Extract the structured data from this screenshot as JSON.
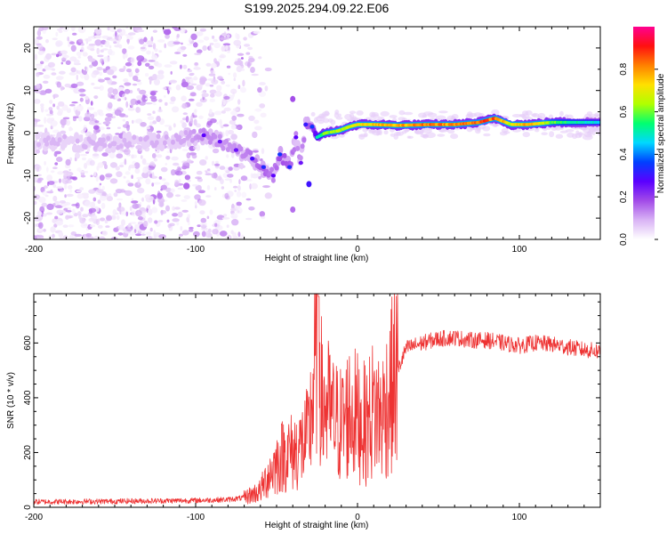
{
  "title": "S199.2025.294.09.22.E06",
  "chart_data": [
    {
      "type": "heatmap",
      "name": "spectrogram",
      "xlabel": "Height of straight line (km)",
      "ylabel": "Frequency (Hz)",
      "xlim": [
        -200,
        150
      ],
      "ylim": [
        -25,
        25
      ],
      "xticks": [
        -200,
        -100,
        0,
        100
      ],
      "yticks": [
        -20,
        -10,
        0,
        10,
        20
      ],
      "colorbar": {
        "label": "Normalized spectral amplitude",
        "range": [
          0.0,
          1.0
        ],
        "ticks": [
          "0.0",
          "0.2",
          "0.4",
          "0.6",
          "0.8"
        ],
        "colors": [
          "#ffffff",
          "#d9b3f5",
          "#a24be8",
          "#5a00ff",
          "#0040ff",
          "#00d8ff",
          "#00ff70",
          "#b0ff00",
          "#ffe000",
          "#ff8000",
          "#ff1010",
          "#ff0090"
        ]
      },
      "main_signal_track": [
        {
          "x": -200,
          "y": -2.0,
          "amp": 0.14
        },
        {
          "x": -180,
          "y": -2.0,
          "amp": 0.15
        },
        {
          "x": -160,
          "y": -2.5,
          "amp": 0.15
        },
        {
          "x": -140,
          "y": -2.0,
          "amp": 0.15
        },
        {
          "x": -120,
          "y": -2.0,
          "amp": 0.16
        },
        {
          "x": -105,
          "y": -1.0,
          "amp": 0.17
        },
        {
          "x": -95,
          "y": -0.5,
          "amp": 0.22
        },
        {
          "x": -85,
          "y": -2.0,
          "amp": 0.2
        },
        {
          "x": -75,
          "y": -4.0,
          "amp": 0.2
        },
        {
          "x": -65,
          "y": -6.0,
          "amp": 0.24
        },
        {
          "x": -58,
          "y": -8.0,
          "amp": 0.28
        },
        {
          "x": -52,
          "y": -10.0,
          "amp": 0.22
        },
        {
          "x": -48,
          "y": -5.0,
          "amp": 0.3
        },
        {
          "x": -42,
          "y": -8.0,
          "amp": 0.28
        },
        {
          "x": -38,
          "y": -1.0,
          "amp": 0.22
        },
        {
          "x": -35,
          "y": -7.0,
          "amp": 0.2
        },
        {
          "x": -32,
          "y": 2.0,
          "amp": 0.26
        },
        {
          "x": -28,
          "y": 1.5,
          "amp": 0.3
        },
        {
          "x": -25,
          "y": -1.0,
          "amp": 0.5
        },
        {
          "x": -20,
          "y": 0.0,
          "amp": 0.65
        },
        {
          "x": -12,
          "y": 0.5,
          "amp": 0.7
        },
        {
          "x": -5,
          "y": 1.5,
          "amp": 0.72
        },
        {
          "x": 0,
          "y": 2.0,
          "amp": 0.75
        },
        {
          "x": 10,
          "y": 2.0,
          "amp": 0.8
        },
        {
          "x": 25,
          "y": 1.8,
          "amp": 0.82
        },
        {
          "x": 45,
          "y": 2.0,
          "amp": 0.9
        },
        {
          "x": 60,
          "y": 2.0,
          "amp": 0.86
        },
        {
          "x": 75,
          "y": 2.5,
          "amp": 0.92
        },
        {
          "x": 85,
          "y": 3.5,
          "amp": 0.9
        },
        {
          "x": 95,
          "y": 2.0,
          "amp": 0.72
        },
        {
          "x": 105,
          "y": 2.0,
          "amp": 0.85
        },
        {
          "x": 120,
          "y": 2.5,
          "amp": 0.65
        },
        {
          "x": 135,
          "y": 2.5,
          "amp": 0.55
        },
        {
          "x": 150,
          "y": 2.5,
          "amp": 0.5
        }
      ],
      "noise_region_x": [
        -200,
        -70
      ],
      "secondary_features": [
        {
          "x": -40,
          "y": 8.0,
          "amp": 0.18
        },
        {
          "x": -30,
          "y": -12.0,
          "amp": 0.3
        },
        {
          "x": -40,
          "y": -18.0,
          "amp": 0.15
        }
      ]
    },
    {
      "type": "line",
      "name": "snr",
      "xlabel": "Height of straight line (km)",
      "ylabel": "SNR (10 * v/v)",
      "xlim": [
        -200,
        150
      ],
      "ylim": [
        0,
        780
      ],
      "xticks": [
        -200,
        -100,
        0,
        100
      ],
      "yticks": [
        0,
        200,
        400,
        600
      ],
      "line_color": "#ee3333",
      "series": [
        {
          "name": "SNR",
          "x": [
            -200,
            -150,
            -100,
            -80,
            -70,
            -60,
            -55,
            -50,
            -45,
            -40,
            -35,
            -30,
            -26,
            -24,
            -22,
            -20,
            -15,
            -10,
            -5,
            0,
            5,
            10,
            15,
            20,
            25,
            30,
            40,
            50,
            60,
            70,
            80,
            90,
            100,
            110,
            120,
            130,
            140,
            150
          ],
          "y": [
            20,
            22,
            25,
            28,
            35,
            60,
            120,
            160,
            200,
            200,
            220,
            260,
            520,
            770,
            350,
            380,
            320,
            300,
            350,
            330,
            300,
            360,
            330,
            420,
            500,
            580,
            600,
            615,
            620,
            610,
            610,
            600,
            590,
            600,
            595,
            585,
            575,
            570
          ]
        }
      ]
    }
  ]
}
